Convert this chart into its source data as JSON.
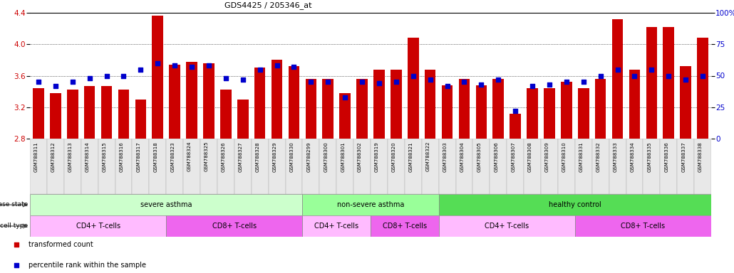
{
  "title": "GDS4425 / 205346_at",
  "samples": [
    "GSM788311",
    "GSM788312",
    "GSM788313",
    "GSM788314",
    "GSM788315",
    "GSM788316",
    "GSM788317",
    "GSM788318",
    "GSM788323",
    "GSM788324",
    "GSM788325",
    "GSM788326",
    "GSM788327",
    "GSM788328",
    "GSM788329",
    "GSM788330",
    "GSM788299",
    "GSM788300",
    "GSM788301",
    "GSM788302",
    "GSM788319",
    "GSM788320",
    "GSM788321",
    "GSM788322",
    "GSM788303",
    "GSM788304",
    "GSM788305",
    "GSM788306",
    "GSM788307",
    "GSM788308",
    "GSM788309",
    "GSM788310",
    "GSM788331",
    "GSM788332",
    "GSM788333",
    "GSM788334",
    "GSM788335",
    "GSM788336",
    "GSM788337",
    "GSM788338"
  ],
  "bar_heights": [
    3.44,
    3.38,
    3.42,
    3.47,
    3.47,
    3.42,
    3.3,
    4.36,
    3.74,
    3.78,
    3.76,
    3.42,
    3.3,
    3.7,
    3.8,
    3.72,
    3.56,
    3.56,
    3.38,
    3.56,
    3.68,
    3.68,
    4.08,
    3.68,
    3.48,
    3.56,
    3.48,
    3.56,
    3.12,
    3.44,
    3.44,
    3.52,
    3.44,
    3.56,
    4.32,
    3.68,
    4.22,
    4.22,
    3.72,
    4.08
  ],
  "percentile_ranks": [
    45,
    42,
    45,
    48,
    50,
    50,
    55,
    60,
    58,
    57,
    58,
    48,
    47,
    55,
    58,
    57,
    45,
    45,
    33,
    45,
    44,
    45,
    50,
    47,
    42,
    45,
    43,
    47,
    22,
    42,
    43,
    45,
    45,
    50,
    55,
    50,
    55,
    50,
    47,
    50
  ],
  "y_min": 2.8,
  "y_max": 4.4,
  "y_ticks_left": [
    2.8,
    3.2,
    3.6,
    4.0,
    4.4
  ],
  "y_ticks_right": [
    0,
    25,
    50,
    75,
    100
  ],
  "bar_color": "#cc0000",
  "dot_color": "#0000cc",
  "bg_color": "#ffffff",
  "disease_states": [
    {
      "label": "severe asthma",
      "start": 0,
      "end": 16,
      "color": "#ccffcc"
    },
    {
      "label": "non-severe asthma",
      "start": 16,
      "end": 24,
      "color": "#99ff99"
    },
    {
      "label": "healthy control",
      "start": 24,
      "end": 40,
      "color": "#55dd55"
    }
  ],
  "cell_types": [
    {
      "label": "CD4+ T-cells",
      "start": 0,
      "end": 8,
      "color": "#ffbbff"
    },
    {
      "label": "CD8+ T-cells",
      "start": 8,
      "end": 16,
      "color": "#ee66ee"
    },
    {
      "label": "CD4+ T-cells",
      "start": 16,
      "end": 20,
      "color": "#ffbbff"
    },
    {
      "label": "CD8+ T-cells",
      "start": 20,
      "end": 24,
      "color": "#ee66ee"
    },
    {
      "label": "CD4+ T-cells",
      "start": 24,
      "end": 32,
      "color": "#ffbbff"
    },
    {
      "label": "CD8+ T-cells",
      "start": 32,
      "end": 40,
      "color": "#ee66ee"
    }
  ],
  "legend_items": [
    {
      "label": "transformed count",
      "color": "#cc0000"
    },
    {
      "label": "percentile rank within the sample",
      "color": "#0000cc"
    }
  ]
}
